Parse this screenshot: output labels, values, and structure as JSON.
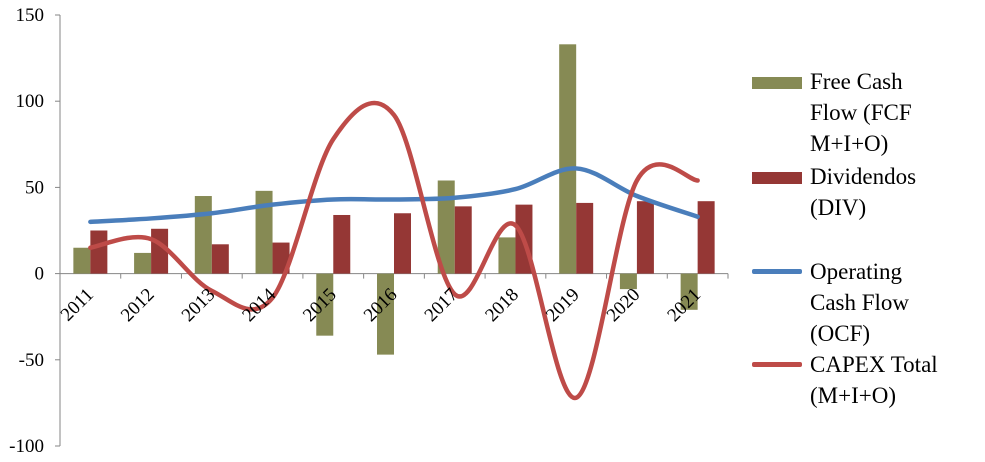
{
  "chart_data": {
    "type": "bar",
    "categories": [
      "2011",
      "2012",
      "2013",
      "2014",
      "2015",
      "2016",
      "2017",
      "2018",
      "2019",
      "2020",
      "2021"
    ],
    "ylim": [
      -100,
      150
    ],
    "yticks": [
      -100,
      -50,
      0,
      50,
      100,
      150
    ],
    "grid": false,
    "legend_position": "right",
    "series": [
      {
        "name": "Free Cash Flow (FCF M+I+O)",
        "type": "bar",
        "color": "#868A54",
        "values": [
          15,
          12,
          45,
          48,
          -36,
          -47,
          54,
          21,
          133,
          -9,
          -21
        ]
      },
      {
        "name": "Dividendos (DIV)",
        "type": "bar",
        "color": "#953735",
        "values": [
          25,
          26,
          17,
          18,
          34,
          35,
          39,
          40,
          41,
          42,
          42
        ]
      },
      {
        "name": "Operating Cash Flow (OCF)",
        "type": "line",
        "color": "#4A7EBB",
        "values": [
          30,
          32,
          35,
          40,
          43,
          43,
          44,
          49,
          61,
          45,
          33
        ]
      },
      {
        "name": "CAPEX Total (M+I+O)",
        "type": "line",
        "color": "#BE4B48",
        "values": [
          15,
          20,
          -10,
          -14,
          78,
          92,
          -12,
          28,
          -72,
          54,
          54
        ]
      }
    ]
  },
  "legend": {
    "fcf_line1": "Free Cash",
    "fcf_line2": "Flow (FCF",
    "fcf_line3": "M+I+O)",
    "div_line1": "Dividendos",
    "div_line2": "(DIV)",
    "ocf_line1": "Operating",
    "ocf_line2": "Cash Flow",
    "ocf_line3": "(OCF)",
    "capex_line1": "CAPEX Total",
    "capex_line2": "(M+I+O)"
  }
}
